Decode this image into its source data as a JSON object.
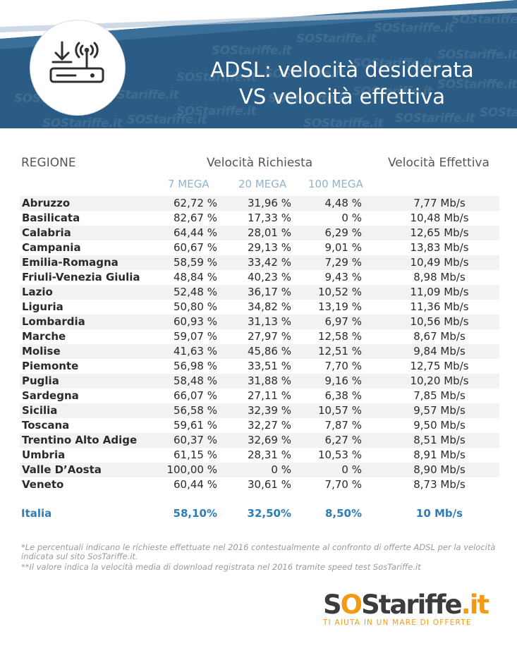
{
  "title_line1": "ADSL: velocità desiderata",
  "title_line2": "VS velocità effettiva",
  "watermark_text": "SOStariffe.it",
  "header_icon": "router-download-icon",
  "colors": {
    "banner": "#2b5c85",
    "accent": "#2f7db7",
    "subheader": "#8fb3cc",
    "logo_orange": "#f39a15"
  },
  "table": {
    "col_region": "REGIONE",
    "col_requested": "Velocità Richiesta",
    "col_effective": "Velocità Effettiva",
    "sub_7": "7 MEGA",
    "sub_20": "20 MEGA",
    "sub_100": "100 MEGA",
    "rows": [
      {
        "region": "Abruzzo",
        "v7": "62,72",
        "v20": "31,96",
        "v100": "4,48",
        "eff": "7,77"
      },
      {
        "region": "Basilicata",
        "v7": "82,67",
        "v20": "17,33",
        "v100": "0",
        "eff": "10,48"
      },
      {
        "region": "Calabria",
        "v7": "64,44",
        "v20": "28,01",
        "v100": "6,29",
        "eff": "12,65"
      },
      {
        "region": "Campania",
        "v7": "60,67",
        "v20": "29,13",
        "v100": "9,01",
        "eff": "13,83"
      },
      {
        "region": "Emilia-Romagna",
        "v7": "58,59",
        "v20": "33,42",
        "v100": "7,29",
        "eff": "10,49"
      },
      {
        "region": "Friuli-Venezia Giulia",
        "v7": "48,84",
        "v20": "40,23",
        "v100": "9,43",
        "eff": "8,98"
      },
      {
        "region": "Lazio",
        "v7": "52,48",
        "v20": "36,17",
        "v100": "10,52",
        "eff": "11,09"
      },
      {
        "region": "Liguria",
        "v7": "50,80",
        "v20": "34,82",
        "v100": "13,19",
        "eff": "11,36"
      },
      {
        "region": "Lombardia",
        "v7": "60,93",
        "v20": "31,13",
        "v100": "6,97",
        "eff": "10,56"
      },
      {
        "region": "Marche",
        "v7": "59,07",
        "v20": "27,97",
        "v100": "12,58",
        "eff": "8,67"
      },
      {
        "region": "Molise",
        "v7": "41,63",
        "v20": "45,86",
        "v100": "12,51",
        "eff": "9,84"
      },
      {
        "region": "Piemonte",
        "v7": "56,98",
        "v20": "33,51",
        "v100": "7,70",
        "eff": "12,75"
      },
      {
        "region": "Puglia",
        "v7": "58,48",
        "v20": "31,88",
        "v100": "9,16",
        "eff": "10,20"
      },
      {
        "region": "Sardegna",
        "v7": "66,07",
        "v20": "27,11",
        "v100": "6,38",
        "eff": "7,85"
      },
      {
        "region": "Sicilia",
        "v7": "56,58",
        "v20": "32,39",
        "v100": "10,57",
        "eff": "9,57"
      },
      {
        "region": "Toscana",
        "v7": "59,61",
        "v20": "32,27",
        "v100": "7,87",
        "eff": "9,50"
      },
      {
        "region": "Trentino Alto Adige",
        "v7": "60,37",
        "v20": "32,69",
        "v100": "6,27",
        "eff": "8,51"
      },
      {
        "region": "Umbria",
        "v7": "61,15",
        "v20": "28,31",
        "v100": "10,53",
        "eff": "8,91"
      },
      {
        "region": "Valle D’Aosta",
        "v7": "100,00",
        "v20": "0",
        "v100": "0",
        "eff": "8,90"
      },
      {
        "region": "Veneto",
        "v7": "60,44",
        "v20": "30,61",
        "v100": "7,70",
        "eff": "8,73"
      }
    ],
    "unit_percent": "%",
    "unit_speed": "Mb/s",
    "total": {
      "region": "Italia",
      "v7": "58,10%",
      "v20": "32,50%",
      "v100": "8,50%",
      "eff": "10 Mb/s"
    }
  },
  "notes": {
    "note1": "*Le percentuali indicano le richieste effettuate nel 2016 contestualmente al confronto di offerte ADSL per la velocità indicata sul sito SosTariffe.it.",
    "note2": "**Il valore indica la velocità media di download registrata nel 2016 tramite speed test SosTariffe.it"
  },
  "logo": {
    "dark": "S",
    "orange": "O",
    "dark2": "Stariffe",
    "orange2": ".it",
    "tagline": "TI AIUTA IN UN MARE DI OFFERTE"
  }
}
